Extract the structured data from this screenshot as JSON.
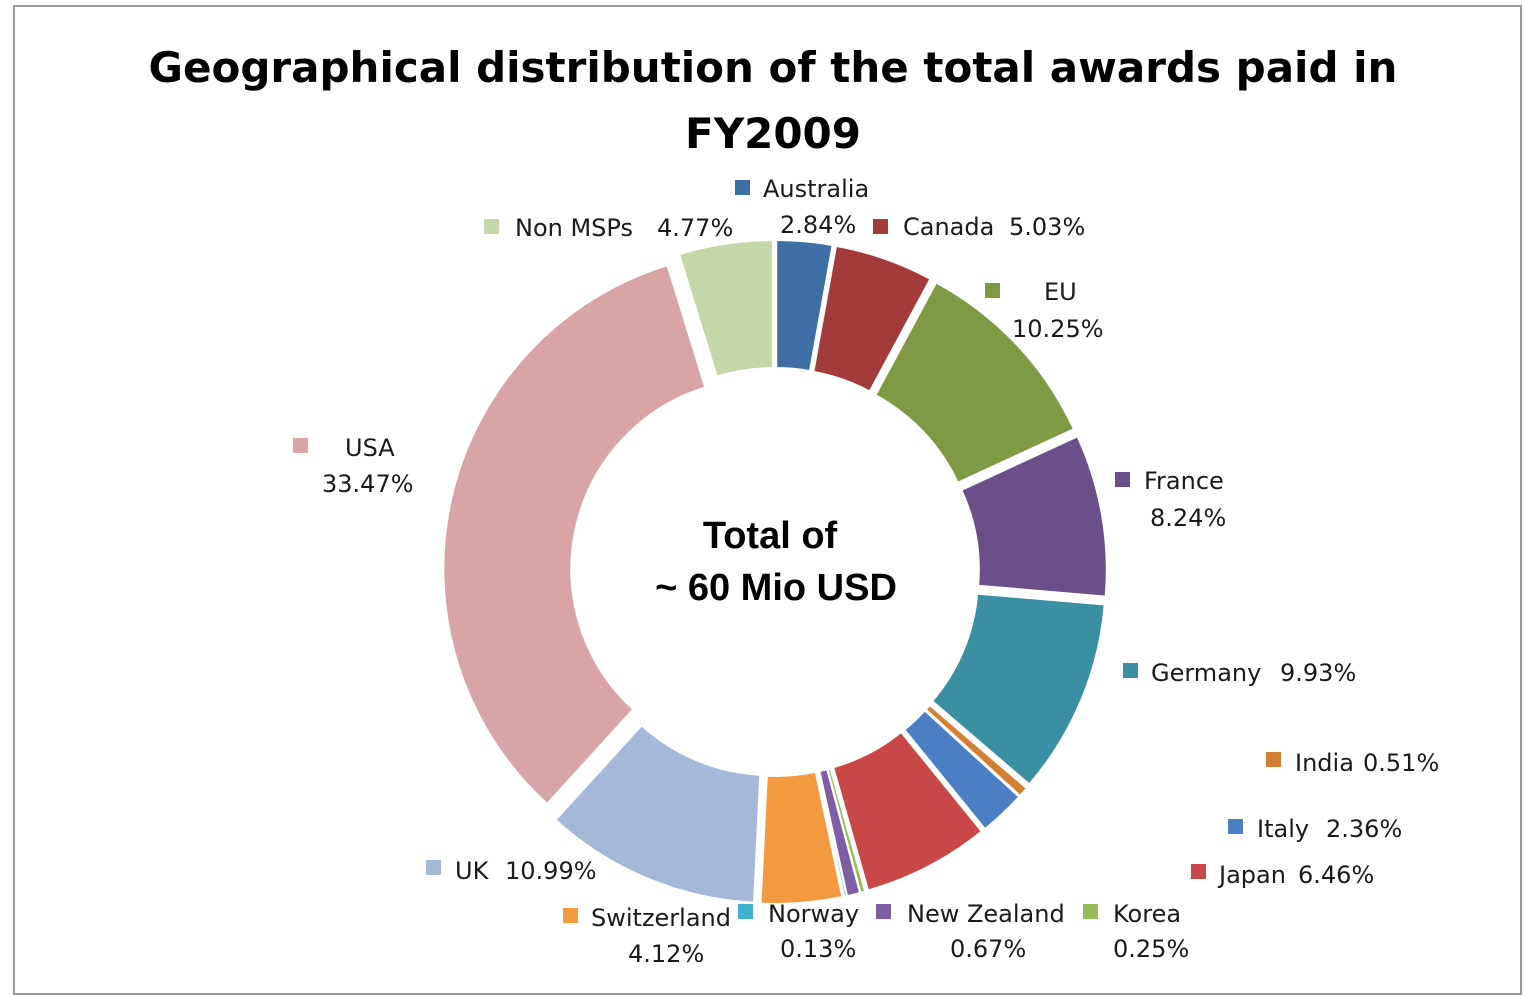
{
  "chart_data": {
    "type": "pie",
    "style": "exploded-doughnut",
    "title_lines": [
      "Geographical distribution of the total awards paid in",
      "FY2009"
    ],
    "center_lines": [
      "Total of",
      "~ 60 Mio USD"
    ],
    "slices": [
      {
        "name": "Australia",
        "value": 2.84,
        "label": "2.84%",
        "color": "#3f6ea5"
      },
      {
        "name": "Canada",
        "value": 5.03,
        "label": "5.03%",
        "color": "#a33b3b"
      },
      {
        "name": "EU",
        "value": 10.25,
        "label": "10.25%",
        "color": "#7f9a44"
      },
      {
        "name": "France",
        "value": 8.24,
        "label": "8.24%",
        "color": "#6a4f8a"
      },
      {
        "name": "Germany",
        "value": 9.93,
        "label": "9.93%",
        "color": "#3a8fa3"
      },
      {
        "name": "India",
        "value": 0.51,
        "label": "0.51%",
        "color": "#d57f33"
      },
      {
        "name": "Italy",
        "value": 2.36,
        "label": "2.36%",
        "color": "#4a7fc4"
      },
      {
        "name": "Japan",
        "value": 6.46,
        "label": "6.46%",
        "color": "#c84747"
      },
      {
        "name": "Korea",
        "value": 0.25,
        "label": "0.25%",
        "color": "#98bc55"
      },
      {
        "name": "New Zealand",
        "value": 0.67,
        "label": "0.67%",
        "color": "#7e5fa6"
      },
      {
        "name": "Norway",
        "value": 0.13,
        "label": "0.13%",
        "color": "#3fb1cc"
      },
      {
        "name": "Switzerland",
        "value": 4.12,
        "label": "4.12%",
        "color": "#f39a41"
      },
      {
        "name": "UK",
        "value": 10.99,
        "label": "10.99%",
        "color": "#a6b8d8"
      },
      {
        "name": "USA",
        "value": 33.47,
        "label": "33.47%",
        "color": "#d8a4a5"
      },
      {
        "name": "Non MSPs",
        "value": 4.77,
        "label": "4.77%",
        "color": "#c5d7a8"
      }
    ]
  }
}
